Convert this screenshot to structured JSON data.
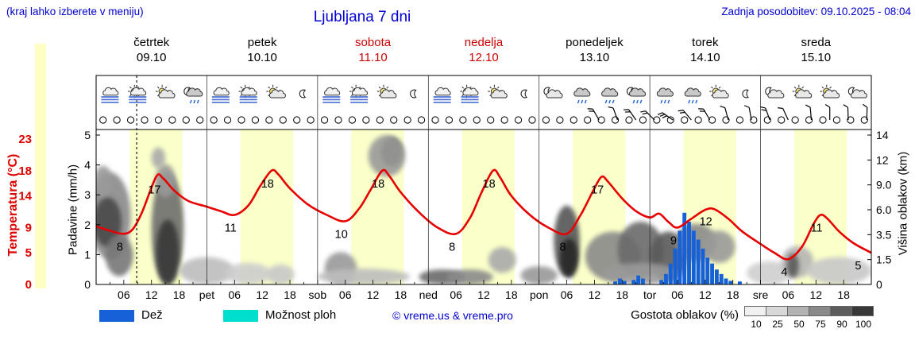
{
  "header": {
    "menu_hint": "(kraj lahko izberete v meniju)",
    "title": "Ljubljana 7 dni",
    "last_update": "Zadnja posodobitev: 09.10.2025 - 08:04"
  },
  "days": [
    {
      "name": "četrtek",
      "date": "09.10",
      "color": "#000000"
    },
    {
      "name": "petek",
      "date": "10.10",
      "color": "#000000"
    },
    {
      "name": "sobota",
      "date": "11.10",
      "color": "#cc0000"
    },
    {
      "name": "nedelja",
      "date": "12.10",
      "color": "#cc0000"
    },
    {
      "name": "ponedeljek",
      "date": "13.10",
      "color": "#000000"
    },
    {
      "name": "torek",
      "date": "14.10",
      "color": "#000000"
    },
    {
      "name": "sreda",
      "date": "15.10",
      "color": "#000000"
    }
  ],
  "axes": {
    "temperature": {
      "label": "Temperatura (°C)",
      "ticks": [
        23,
        18,
        14,
        9,
        5,
        0
      ],
      "color": "#dd0000"
    },
    "precipitation": {
      "label": "Padavine (mm/h)",
      "ticks": [
        5,
        4,
        3,
        2,
        1,
        0
      ]
    },
    "cloud_height": {
      "label": "Višina oblakov (km)",
      "ticks": [
        "14",
        "12",
        "9.0",
        "6.0",
        "3.5",
        "1.5",
        "0"
      ]
    }
  },
  "xaxis": {
    "hour_labels": [
      "06",
      "12",
      "18"
    ],
    "day_abbrs": [
      "pet",
      "sob",
      "ned",
      "pon",
      "tor",
      "sre"
    ]
  },
  "legend": {
    "rain_label": "Dež",
    "rain_color": "#1661d8",
    "showers_label": "Možnost ploh",
    "showers_color": "#00dfcd",
    "copyright": "© vreme.us & vreme.pro",
    "cloud_density_label": "Gostota oblakov (%)",
    "density_ticks": [
      "10",
      "25",
      "50",
      "75",
      "90",
      "100"
    ],
    "density_colors": [
      "#f0f0f0",
      "#d8d8d8",
      "#b2b2b2",
      "#8a8a8a",
      "#5c5c5c",
      "#383838"
    ]
  },
  "chart_data": {
    "type": "meteogram",
    "hours_total": 168,
    "now_hour": 8.8,
    "daylight": {
      "start_hour": 7.3,
      "end_hour": 18.7
    },
    "day_band_color": "#fbffc9",
    "temperature_c": {
      "color": "#e80000",
      "points": [
        [
          0,
          9.2
        ],
        [
          3,
          8.5
        ],
        [
          6,
          8
        ],
        [
          8,
          8.8
        ],
        [
          10,
          11.5
        ],
        [
          13,
          17
        ],
        [
          14.5,
          16.8
        ],
        [
          17,
          14.8
        ],
        [
          20,
          13.2
        ],
        [
          24,
          12.3
        ],
        [
          27,
          11.6
        ],
        [
          30,
          11
        ],
        [
          33,
          12.5
        ],
        [
          35.5,
          15.5
        ],
        [
          38,
          18
        ],
        [
          39.5,
          17.4
        ],
        [
          42,
          15.2
        ],
        [
          46,
          12.6
        ],
        [
          50,
          11
        ],
        [
          54,
          10
        ],
        [
          57,
          12
        ],
        [
          59.5,
          15
        ],
        [
          62,
          18
        ],
        [
          63.5,
          17.2
        ],
        [
          66,
          14.6
        ],
        [
          70,
          11.4
        ],
        [
          74,
          9
        ],
        [
          78,
          8
        ],
        [
          81,
          10.5
        ],
        [
          83.5,
          14.5
        ],
        [
          86,
          18
        ],
        [
          87.5,
          17
        ],
        [
          90,
          14
        ],
        [
          94,
          11
        ],
        [
          98,
          9
        ],
        [
          102,
          8
        ],
        [
          105,
          11
        ],
        [
          107.5,
          14.5
        ],
        [
          109.5,
          17
        ],
        [
          111,
          16.2
        ],
        [
          114,
          13.6
        ],
        [
          117,
          11.6
        ],
        [
          120,
          10.6
        ],
        [
          122,
          11.2
        ],
        [
          124,
          9.9
        ],
        [
          126,
          9
        ],
        [
          129,
          10.4
        ],
        [
          132,
          11.8
        ],
        [
          134,
          11.9
        ],
        [
          137,
          10.4
        ],
        [
          140,
          8.4
        ],
        [
          144,
          6.4
        ],
        [
          147,
          5
        ],
        [
          150,
          4
        ],
        [
          153,
          6
        ],
        [
          155.5,
          9.6
        ],
        [
          157,
          11
        ],
        [
          158.5,
          10.4
        ],
        [
          161,
          8.4
        ],
        [
          164,
          6.6
        ],
        [
          168,
          5
        ]
      ],
      "extreme_labels": [
        [
          6,
          8
        ],
        [
          13.5,
          17
        ],
        [
          30,
          11
        ],
        [
          38,
          18
        ],
        [
          54,
          10
        ],
        [
          62,
          18
        ],
        [
          78,
          8
        ],
        [
          86,
          18
        ],
        [
          102,
          8
        ],
        [
          109.5,
          17
        ],
        [
          126,
          9
        ],
        [
          133,
          12
        ],
        [
          150,
          4
        ],
        [
          157,
          11
        ],
        [
          166,
          5
        ]
      ]
    },
    "precip_mm_h": {
      "color": "#1661d8",
      "bars": [
        [
          112.5,
          0.1
        ],
        [
          113.5,
          0.2
        ],
        [
          114.5,
          0.12
        ],
        [
          116.5,
          0.15
        ],
        [
          117.5,
          0.3
        ],
        [
          118.5,
          0.2
        ],
        [
          122.5,
          0.15
        ],
        [
          123.5,
          0.35
        ],
        [
          124.5,
          0.7
        ],
        [
          125.5,
          1.2
        ],
        [
          126.5,
          1.8
        ],
        [
          127.5,
          2.4
        ],
        [
          128.5,
          2.1
        ],
        [
          129.5,
          1.8
        ],
        [
          130.5,
          1.5
        ],
        [
          131.5,
          1.2
        ],
        [
          132.5,
          0.9
        ],
        [
          133.5,
          0.7
        ],
        [
          134.5,
          0.5
        ],
        [
          135.5,
          0.35
        ],
        [
          136.5,
          0.2
        ],
        [
          137.5,
          0.12
        ],
        [
          139.5,
          0.1
        ]
      ]
    },
    "clouds": {
      "blobs": [
        [
          3,
          6,
          4.5,
          4.5,
          "#8a8a8a"
        ],
        [
          2.5,
          5,
          3,
          2.5,
          "#4a4a4a"
        ],
        [
          1.5,
          9.5,
          2,
          1.8,
          "#9a9a9a"
        ],
        [
          5,
          2,
          3,
          1.5,
          "#777777"
        ],
        [
          15.5,
          5,
          3.5,
          5.5,
          "#6e6e6e"
        ],
        [
          15.5,
          2.5,
          2.5,
          2.5,
          "#383838"
        ],
        [
          15,
          9.5,
          2.2,
          2,
          "#999999"
        ],
        [
          13.5,
          12,
          1.5,
          1,
          "#aaaaaa"
        ],
        [
          24,
          0.8,
          6,
          0.9,
          "#bdbdbd"
        ],
        [
          33,
          0.6,
          5,
          0.7,
          "#cdcdcd"
        ],
        [
          40,
          0.6,
          3,
          0.6,
          "#c8c8c8"
        ],
        [
          53,
          1,
          3.5,
          1.1,
          "#9a9a9a"
        ],
        [
          64,
          12.5,
          2.3,
          1.3,
          "#3a3a3a"
        ],
        [
          63,
          12,
          4,
          2,
          "#9a9a9a"
        ],
        [
          58,
          0.4,
          10,
          0.55,
          "#bdbdbd"
        ],
        [
          75,
          0.4,
          5,
          0.5,
          "#6a6a6a"
        ],
        [
          81,
          0.4,
          5,
          0.5,
          "#8a8a8a"
        ],
        [
          88,
          1.6,
          3,
          0.9,
          "#aaaaaa"
        ],
        [
          96,
          0.5,
          4,
          0.6,
          "#999999"
        ],
        [
          102,
          3.5,
          2.8,
          3,
          "#555555"
        ],
        [
          102.5,
          1.8,
          2,
          1.4,
          "#262626"
        ],
        [
          112,
          2,
          6,
          1.8,
          "#8a8a8a"
        ],
        [
          118,
          2.6,
          5,
          2.2,
          "#6a6a6a"
        ],
        [
          124,
          2,
          4,
          1.8,
          "#5a5a5a"
        ],
        [
          130,
          3,
          4.5,
          1.6,
          "#8a8a8a"
        ],
        [
          135,
          2.6,
          3.5,
          1.3,
          "#9a9a9a"
        ],
        [
          118,
          0.6,
          8,
          0.7,
          "#9a9a9a"
        ],
        [
          146,
          0.6,
          5,
          0.8,
          "#cfcfcf"
        ],
        [
          152,
          1.5,
          3.5,
          1.1,
          "#b5b5b5"
        ],
        [
          151,
          1.2,
          1.3,
          0.8,
          "#5a5a5a"
        ],
        [
          161,
          0.8,
          7,
          0.9,
          "#c8c8c8"
        ]
      ]
    },
    "weather_icons": [
      "fog",
      "fog-sun",
      "sun-cloud",
      "moon-rain",
      "fog",
      "fog-sun",
      "sun-cloud",
      "moon",
      "fog",
      "fog-sun",
      "sun-cloud",
      "moon",
      "fog",
      "fog-sun",
      "sun-cloud",
      "moon",
      "moon-cloud",
      "rain",
      "rain",
      "moon-rain",
      "rain",
      "rain",
      "sun-cloud",
      "moon",
      "moon-cloud",
      "sun-cloud",
      "sun-cloud",
      "moon-cloud"
    ],
    "cloud_cover_row": {
      "count": 56,
      "symbol": "open-circle"
    },
    "wind_barbs": [
      [
        109,
        240,
        2
      ],
      [
        113,
        250,
        1
      ],
      [
        117,
        235,
        2
      ],
      [
        121,
        225,
        2
      ],
      [
        125,
        215,
        3
      ],
      [
        129,
        230,
        2
      ],
      [
        133,
        240,
        2
      ],
      [
        137,
        255,
        1
      ],
      [
        142,
        260,
        1
      ],
      [
        146,
        250,
        2
      ],
      [
        150,
        245,
        1
      ],
      [
        155,
        265,
        1
      ],
      [
        159,
        270,
        1
      ],
      [
        163,
        268,
        1
      ],
      [
        167,
        272,
        1
      ]
    ]
  }
}
